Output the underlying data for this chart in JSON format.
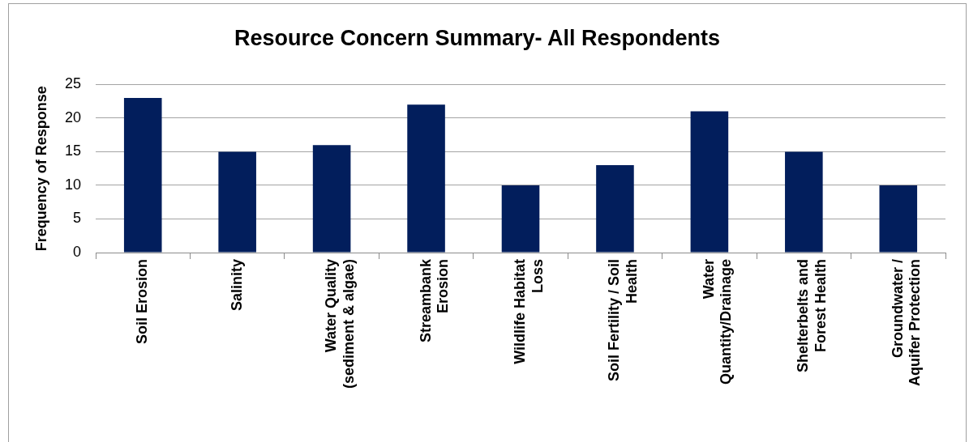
{
  "chart_data": {
    "type": "bar",
    "title": "Resource Concern Summary- All Respondents",
    "ylabel": "Frequency of Response",
    "categories": [
      "Soil Erosion",
      "Salinity",
      "Water Quality (sediment & algae)",
      "Streambank Erosion",
      "Wildlife Habitat Loss",
      "Soil Fertility / Soil Health",
      "Water Quantity/Drainage",
      "Shelterbelts and Forest Health",
      "Groundwater / Aquifer Protection"
    ],
    "values": [
      23,
      15,
      16,
      22,
      10,
      13,
      21,
      15,
      10
    ],
    "color": "#021e5c",
    "ylim": [
      0,
      25
    ],
    "yticks": [
      0,
      5,
      10,
      15,
      20,
      25
    ],
    "grid": "y"
  }
}
